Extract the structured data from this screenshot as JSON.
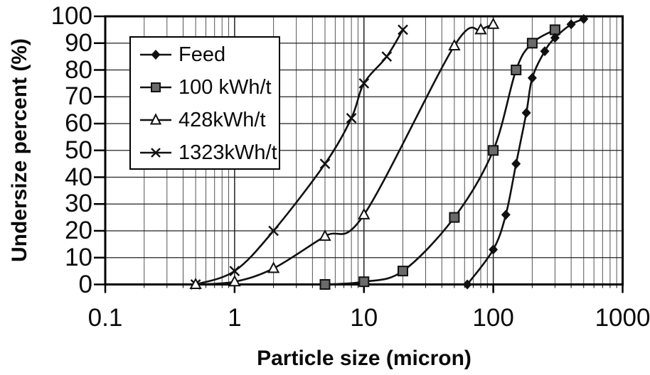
{
  "figure": {
    "background": "#ffffff",
    "ink_color": "#111111",
    "square_fill": "#6a6a6a"
  },
  "chart_data": {
    "type": "line",
    "title": "",
    "xlabel": "Particle size (micron)",
    "ylabel": "Undersize percent (%)",
    "x_scale": "log",
    "xlim": [
      0.1,
      1000
    ],
    "ylim": [
      0,
      100
    ],
    "x_ticks": [
      0.1,
      1,
      10,
      100,
      1000
    ],
    "y_ticks": [
      0,
      10,
      20,
      30,
      40,
      50,
      60,
      70,
      80,
      90,
      100
    ],
    "grid": {
      "horizontal_step": 10,
      "vertical": "log decades with 2-9 minor lines"
    },
    "legend_position": "upper-left",
    "series": [
      {
        "name": "Feed",
        "marker": "filled-diamond",
        "points": [
          [
            63,
            0
          ],
          [
            100,
            13
          ],
          [
            125,
            26
          ],
          [
            150,
            45
          ],
          [
            180,
            64
          ],
          [
            200,
            77
          ],
          [
            250,
            87
          ],
          [
            300,
            92
          ],
          [
            400,
            97
          ],
          [
            500,
            99
          ]
        ]
      },
      {
        "name": "100 kWh/t",
        "marker": "filled-square",
        "points": [
          [
            5,
            0
          ],
          [
            10,
            1
          ],
          [
            20,
            5
          ],
          [
            50,
            25
          ],
          [
            100,
            50
          ],
          [
            150,
            80
          ],
          [
            200,
            90
          ],
          [
            300,
            95
          ]
        ]
      },
      {
        "name": "428kWh/t",
        "marker": "open-triangle",
        "points": [
          [
            0.5,
            0
          ],
          [
            1,
            1
          ],
          [
            2,
            6
          ],
          [
            5,
            18
          ],
          [
            10,
            26
          ],
          [
            50,
            89
          ],
          [
            80,
            95
          ],
          [
            100,
            97
          ]
        ]
      },
      {
        "name": "1323kWh/t",
        "marker": "x-cross",
        "points": [
          [
            0.5,
            0
          ],
          [
            1,
            5
          ],
          [
            2,
            20
          ],
          [
            5,
            45
          ],
          [
            8,
            62
          ],
          [
            10,
            75
          ],
          [
            15,
            85
          ],
          [
            20,
            95
          ]
        ]
      }
    ]
  }
}
